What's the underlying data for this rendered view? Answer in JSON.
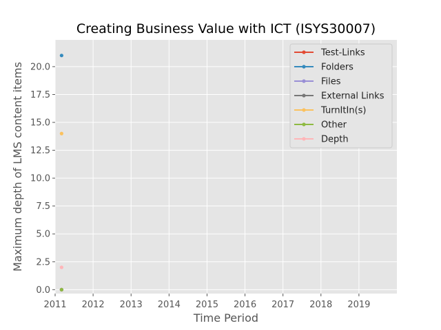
{
  "chart_data": {
    "type": "line",
    "title": "Creating Business Value with ICT (ISYS30007)",
    "xlabel": "Time Period",
    "ylabel": "Maximum depth of LMS content items",
    "xlim": [
      2011,
      2020
    ],
    "ylim": [
      -0.35,
      22.4
    ],
    "xticks": [
      2011,
      2012,
      2013,
      2014,
      2015,
      2016,
      2017,
      2018,
      2019
    ],
    "yticks": [
      0.0,
      2.5,
      5.0,
      7.5,
      10.0,
      12.5,
      15.0,
      17.5,
      20.0
    ],
    "ytick_labels": [
      "0.0",
      "2.5",
      "5.0",
      "7.5",
      "10.0",
      "12.5",
      "15.0",
      "17.5",
      "20.0"
    ],
    "grid": true,
    "legend_position": "top-right",
    "series": [
      {
        "name": "Test-Links",
        "color": "#E24A33",
        "points": [
          {
            "x": 2011.17,
            "y": 0
          }
        ]
      },
      {
        "name": "Folders",
        "color": "#348ABD",
        "points": [
          {
            "x": 2011.17,
            "y": 21
          }
        ]
      },
      {
        "name": "Files",
        "color": "#988ED5",
        "points": [
          {
            "x": 2011.17,
            "y": 0
          }
        ]
      },
      {
        "name": "External Links",
        "color": "#777777",
        "points": [
          {
            "x": 2011.17,
            "y": 0
          }
        ]
      },
      {
        "name": "TurnItIn(s)",
        "color": "#FBC15E",
        "points": [
          {
            "x": 2011.17,
            "y": 14
          }
        ]
      },
      {
        "name": "Other",
        "color": "#8EBA42",
        "points": [
          {
            "x": 2011.17,
            "y": 0
          }
        ]
      },
      {
        "name": "Depth",
        "color": "#FFB5B8",
        "points": [
          {
            "x": 2011.17,
            "y": 2
          }
        ]
      }
    ]
  }
}
